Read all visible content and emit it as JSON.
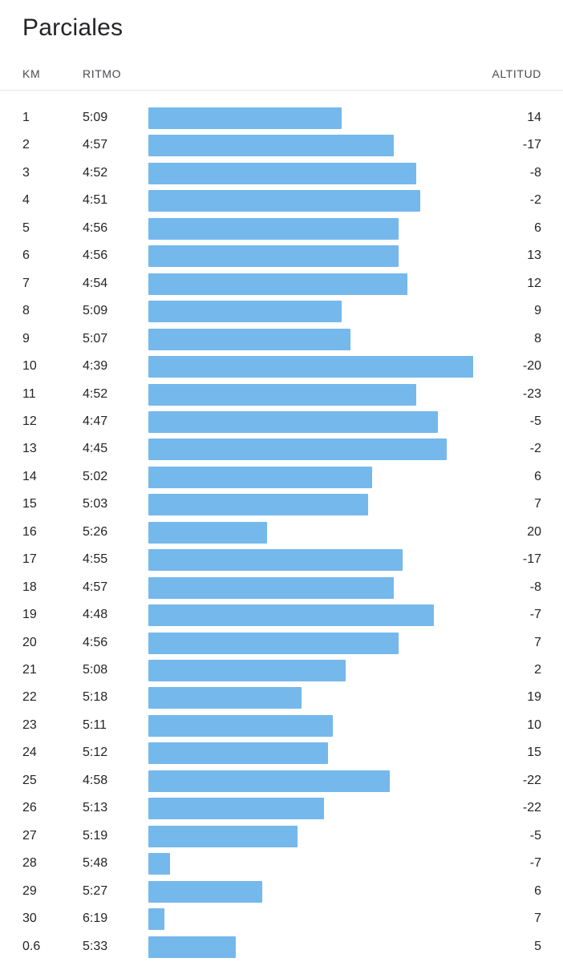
{
  "title": "Parciales",
  "columns": {
    "km": "KM",
    "pace": "RITMO",
    "altitude": "ALTITUD"
  },
  "colors": {
    "bar": "#75b8ec",
    "text": "#242428",
    "divider": "#e6e6ea"
  },
  "splits": [
    {
      "km": "1",
      "pace": "5:09",
      "altitude": "14"
    },
    {
      "km": "2",
      "pace": "4:57",
      "altitude": "-17"
    },
    {
      "km": "3",
      "pace": "4:52",
      "altitude": "-8"
    },
    {
      "km": "4",
      "pace": "4:51",
      "altitude": "-2"
    },
    {
      "km": "5",
      "pace": "4:56",
      "altitude": "6"
    },
    {
      "km": "6",
      "pace": "4:56",
      "altitude": "13"
    },
    {
      "km": "7",
      "pace": "4:54",
      "altitude": "12"
    },
    {
      "km": "8",
      "pace": "5:09",
      "altitude": "9"
    },
    {
      "km": "9",
      "pace": "5:07",
      "altitude": "8"
    },
    {
      "km": "10",
      "pace": "4:39",
      "altitude": "-20"
    },
    {
      "km": "11",
      "pace": "4:52",
      "altitude": "-23"
    },
    {
      "km": "12",
      "pace": "4:47",
      "altitude": "-5"
    },
    {
      "km": "13",
      "pace": "4:45",
      "altitude": "-2"
    },
    {
      "km": "14",
      "pace": "5:02",
      "altitude": "6"
    },
    {
      "km": "15",
      "pace": "5:03",
      "altitude": "7"
    },
    {
      "km": "16",
      "pace": "5:26",
      "altitude": "20"
    },
    {
      "km": "17",
      "pace": "4:55",
      "altitude": "-17"
    },
    {
      "km": "18",
      "pace": "4:57",
      "altitude": "-8"
    },
    {
      "km": "19",
      "pace": "4:48",
      "altitude": "-7"
    },
    {
      "km": "20",
      "pace": "4:56",
      "altitude": "7"
    },
    {
      "km": "21",
      "pace": "5:08",
      "altitude": "2"
    },
    {
      "km": "22",
      "pace": "5:18",
      "altitude": "19"
    },
    {
      "km": "23",
      "pace": "5:11",
      "altitude": "10"
    },
    {
      "km": "24",
      "pace": "5:12",
      "altitude": "15"
    },
    {
      "km": "25",
      "pace": "4:58",
      "altitude": "-22"
    },
    {
      "km": "26",
      "pace": "5:13",
      "altitude": "-22"
    },
    {
      "km": "27",
      "pace": "5:19",
      "altitude": "-5"
    },
    {
      "km": "28",
      "pace": "5:48",
      "altitude": "-7"
    },
    {
      "km": "29",
      "pace": "5:27",
      "altitude": "6"
    },
    {
      "km": "30",
      "pace": "6:19",
      "altitude": "7"
    },
    {
      "km": "0.6",
      "pace": "5:33",
      "altitude": "5"
    }
  ]
}
